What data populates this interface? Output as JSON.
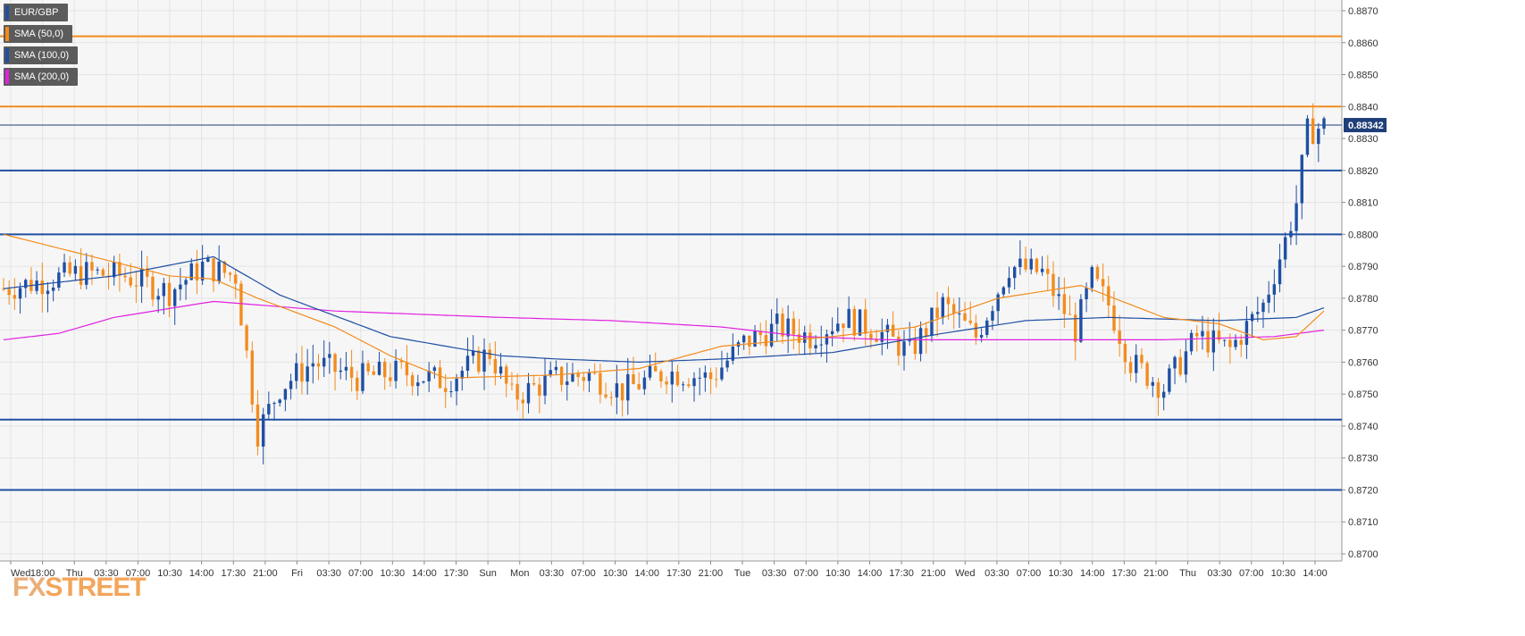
{
  "legend": [
    {
      "label": "EUR/GBP",
      "color": "#1f4fa3"
    },
    {
      "label": "SMA (50,0)",
      "color": "#f28c1e"
    },
    {
      "label": "SMA (100,0)",
      "color": "#1f4fa3"
    },
    {
      "label": "SMA (200,0)",
      "color": "#e020e0"
    }
  ],
  "logo": {
    "fx": "FX",
    "street": "STREET"
  },
  "chart_data": {
    "type": "candlestick",
    "symbol": "EUR/GBP",
    "ylim": [
      0.87,
      0.8875
    ],
    "y_ticks": [
      "0.8700",
      "0.8710",
      "0.8720",
      "0.8730",
      "0.8740",
      "0.8750",
      "0.8760",
      "0.8770",
      "0.8780",
      "0.8790",
      "0.8800",
      "0.8810",
      "0.8820",
      "0.8830",
      "0.8840",
      "0.8850",
      "0.8860",
      "0.8870"
    ],
    "x_ticks": [
      "Wed",
      "18:00",
      "Thu",
      "03:30",
      "07:00",
      "10:30",
      "14:00",
      "17:30",
      "21:00",
      "Fri",
      "03:30",
      "07:00",
      "10:30",
      "14:00",
      "17:30",
      "Sun",
      "Mon",
      "03:30",
      "07:00",
      "10:30",
      "14:00",
      "17:30",
      "21:00",
      "Tue",
      "03:30",
      "07:00",
      "10:30",
      "14:00",
      "17:30",
      "21:00",
      "Wed",
      "03:30",
      "07:00",
      "10:30",
      "14:00",
      "17:30",
      "21:00",
      "Thu",
      "03:30",
      "07:00",
      "10:30",
      "14:00"
    ],
    "last_price": "0.88342",
    "horizontal_levels": [
      {
        "value": 0.8862,
        "color": "#f28c1e"
      },
      {
        "value": 0.884,
        "color": "#f28c1e"
      },
      {
        "value": 0.88342,
        "color": "#1f3f7a"
      },
      {
        "value": 0.882,
        "color": "#1f4fa3"
      },
      {
        "value": 0.88,
        "color": "#1f4fa3"
      },
      {
        "value": 0.8742,
        "color": "#1f4fa3"
      },
      {
        "value": 0.872,
        "color": "#1f4fa3"
      }
    ],
    "colors": {
      "up": "#1f4fa3",
      "down": "#f28c1e"
    },
    "candle_count": 240,
    "close_path": [
      [
        0,
        0.8783
      ],
      [
        6,
        0.8785
      ],
      [
        14,
        0.8788
      ],
      [
        22,
        0.8787
      ],
      [
        30,
        0.8782
      ],
      [
        36,
        0.879
      ],
      [
        42,
        0.8787
      ],
      [
        46,
        0.8738
      ],
      [
        50,
        0.8752
      ],
      [
        56,
        0.876
      ],
      [
        64,
        0.8755
      ],
      [
        72,
        0.8757
      ],
      [
        80,
        0.8754
      ],
      [
        88,
        0.8763
      ],
      [
        92,
        0.8749
      ],
      [
        100,
        0.8755
      ],
      [
        106,
        0.8756
      ],
      [
        112,
        0.8751
      ],
      [
        120,
        0.8757
      ],
      [
        128,
        0.8755
      ],
      [
        134,
        0.8766
      ],
      [
        140,
        0.8771
      ],
      [
        146,
        0.8768
      ],
      [
        152,
        0.8774
      ],
      [
        158,
        0.877
      ],
      [
        164,
        0.8763
      ],
      [
        170,
        0.8778
      ],
      [
        176,
        0.8768
      ],
      [
        182,
        0.879
      ],
      [
        188,
        0.8788
      ],
      [
        194,
        0.877
      ],
      [
        197,
        0.8786
      ],
      [
        200,
        0.8778
      ],
      [
        204,
        0.876
      ],
      [
        210,
        0.8752
      ],
      [
        216,
        0.8768
      ],
      [
        222,
        0.8764
      ],
      [
        228,
        0.8778
      ],
      [
        232,
        0.8798
      ],
      [
        234,
        0.881
      ],
      [
        236,
        0.8832
      ],
      [
        239,
        0.8834
      ]
    ],
    "sma_50": [
      [
        0,
        0.88
      ],
      [
        30,
        0.8787
      ],
      [
        38,
        0.8786
      ],
      [
        46,
        0.878
      ],
      [
        60,
        0.8771
      ],
      [
        70,
        0.8762
      ],
      [
        80,
        0.8755
      ],
      [
        100,
        0.8756
      ],
      [
        115,
        0.8758
      ],
      [
        130,
        0.8765
      ],
      [
        150,
        0.8768
      ],
      [
        165,
        0.8771
      ],
      [
        180,
        0.878
      ],
      [
        195,
        0.8784
      ],
      [
        210,
        0.8774
      ],
      [
        220,
        0.8772
      ],
      [
        228,
        0.8767
      ],
      [
        234,
        0.8768
      ],
      [
        239,
        0.8776
      ]
    ],
    "sma_100": [
      [
        0,
        0.8783
      ],
      [
        20,
        0.8787
      ],
      [
        38,
        0.8793
      ],
      [
        50,
        0.8781
      ],
      [
        70,
        0.8768
      ],
      [
        90,
        0.8762
      ],
      [
        100,
        0.8761
      ],
      [
        115,
        0.876
      ],
      [
        130,
        0.8761
      ],
      [
        150,
        0.8763
      ],
      [
        170,
        0.8769
      ],
      [
        185,
        0.8773
      ],
      [
        200,
        0.8774
      ],
      [
        220,
        0.8773
      ],
      [
        234,
        0.8774
      ],
      [
        239,
        0.8777
      ]
    ],
    "sma_200": [
      [
        0,
        0.8767
      ],
      [
        10,
        0.8769
      ],
      [
        20,
        0.8774
      ],
      [
        38,
        0.8779
      ],
      [
        60,
        0.8776
      ],
      [
        90,
        0.8774
      ],
      [
        110,
        0.8773
      ],
      [
        130,
        0.8771
      ],
      [
        145,
        0.8768
      ],
      [
        160,
        0.8767
      ],
      [
        190,
        0.8767
      ],
      [
        210,
        0.8767
      ],
      [
        230,
        0.8768
      ],
      [
        239,
        0.877
      ]
    ]
  }
}
